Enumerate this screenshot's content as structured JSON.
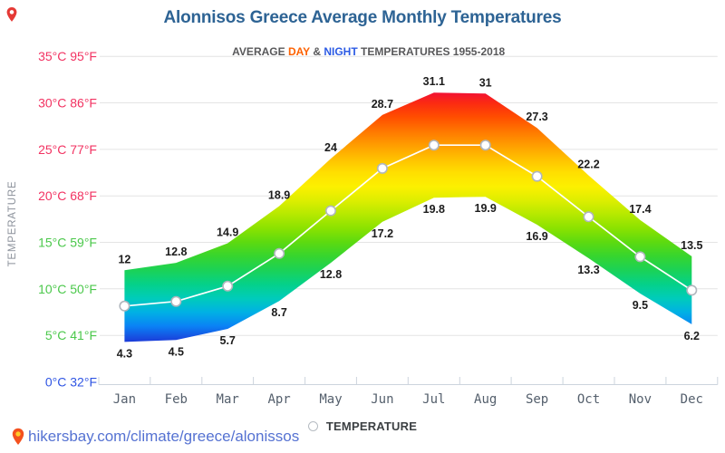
{
  "header": {
    "title": "Alonnisos Greece Average Monthly Temperatures",
    "subtitle_prefix": "AVERAGE ",
    "subtitle_day": "DAY",
    "subtitle_amp": " & ",
    "subtitle_night": "NIGHT",
    "subtitle_suffix": " TEMPERATURES 1955-2018"
  },
  "colors": {
    "title": "#2d6394",
    "subtitle_gray": "#58585a",
    "day_accent": "#fd6202",
    "night_accent": "#2c5be4",
    "axis_warm": "#f23362",
    "axis_mild": "#4bc84b",
    "axis_cold": "#2f55e3",
    "grid": "#e4e4e4",
    "axis_line": "#ccd4dd",
    "month_label": "#55606d",
    "data_label": "#1c1c1c",
    "avg_line": "#ffffff",
    "marker_fill": "#ffffff",
    "marker_stroke": "#b0b6bd",
    "link": "#5572d2",
    "pin_body": "#f4511e",
    "pin_center": "#ffca28"
  },
  "y_axis": {
    "title": "TEMPERATURE",
    "ticks": [
      {
        "label": "35°C 95°F",
        "c": 35,
        "tone": "warm"
      },
      {
        "label": "30°C 86°F",
        "c": 30,
        "tone": "warm"
      },
      {
        "label": "25°C 77°F",
        "c": 25,
        "tone": "warm"
      },
      {
        "label": "20°C 68°F",
        "c": 20,
        "tone": "warm"
      },
      {
        "label": "15°C 59°F",
        "c": 15,
        "tone": "mild"
      },
      {
        "label": "10°C 50°F",
        "c": 10,
        "tone": "mild"
      },
      {
        "label": "5°C 41°F",
        "c": 5,
        "tone": "mild"
      },
      {
        "label": "0°C 32°F",
        "c": 0,
        "tone": "cold"
      }
    ]
  },
  "chart_data": {
    "type": "area",
    "title": "Alonnisos Greece Average Monthly Temperatures",
    "subtitle": "AVERAGE DAY & NIGHT TEMPERATURES 1955-2018",
    "categories": [
      "Jan",
      "Feb",
      "Mar",
      "Apr",
      "May",
      "Jun",
      "Jul",
      "Aug",
      "Sep",
      "Oct",
      "Nov",
      "Dec"
    ],
    "series": [
      {
        "name": "Day",
        "values": [
          12,
          12.8,
          14.9,
          18.9,
          24,
          28.7,
          31.1,
          31,
          27.3,
          22.2,
          17.4,
          13.5
        ]
      },
      {
        "name": "Night",
        "values": [
          4.3,
          4.5,
          5.7,
          8.7,
          12.8,
          17.2,
          19.8,
          19.9,
          16.9,
          13.3,
          9.5,
          6.2
        ]
      }
    ],
    "xlabel": "",
    "ylabel": "TEMPERATURE",
    "ylim": [
      0,
      35
    ],
    "grid": true,
    "legend_position": "bottom",
    "band_gradient": [
      {
        "t": 31.5,
        "color": "#ee0840"
      },
      {
        "t": 30.0,
        "color": "#fb2a12"
      },
      {
        "t": 28.5,
        "color": "#ff4d00"
      },
      {
        "t": 27.0,
        "color": "#ff7600"
      },
      {
        "t": 25.5,
        "color": "#ff9c00"
      },
      {
        "t": 24.0,
        "color": "#ffc000"
      },
      {
        "t": 22.5,
        "color": "#ffdf00"
      },
      {
        "t": 21.0,
        "color": "#fcf000"
      },
      {
        "t": 19.5,
        "color": "#ddee00"
      },
      {
        "t": 18.0,
        "color": "#b5e900"
      },
      {
        "t": 16.5,
        "color": "#8ae200"
      },
      {
        "t": 15.0,
        "color": "#5cda10"
      },
      {
        "t": 13.5,
        "color": "#36d52f"
      },
      {
        "t": 12.0,
        "color": "#1bd257"
      },
      {
        "t": 10.5,
        "color": "#05d189"
      },
      {
        "t": 9.0,
        "color": "#00ccba"
      },
      {
        "t": 7.5,
        "color": "#00b1e4"
      },
      {
        "t": 6.0,
        "color": "#0a82f5"
      },
      {
        "t": 4.2,
        "color": "#1d36d6"
      }
    ]
  },
  "legend": {
    "label": "TEMPERATURE"
  },
  "footer": {
    "link": "hikersbay.com/climate/greece/alonissos"
  }
}
